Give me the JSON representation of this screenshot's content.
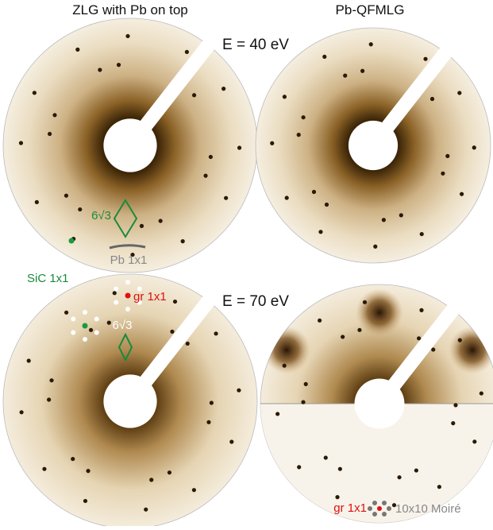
{
  "column_titles": [
    "ZLG with Pb on top",
    "Pb-QFMLG"
  ],
  "energy_labels": [
    "E = 40 eV",
    "E = 70 eV"
  ],
  "annotations": {
    "top_left": {
      "reconstruction": "6√3",
      "pb_spot": "Pb 1x1"
    },
    "substrate": "SiC 1x1",
    "bottom_left": {
      "graphene": "gr 1x1",
      "reconstruction": "6√3"
    },
    "bottom_right": {
      "graphene": "gr 1x1",
      "moire": "10x10 Moiré"
    }
  }
}
